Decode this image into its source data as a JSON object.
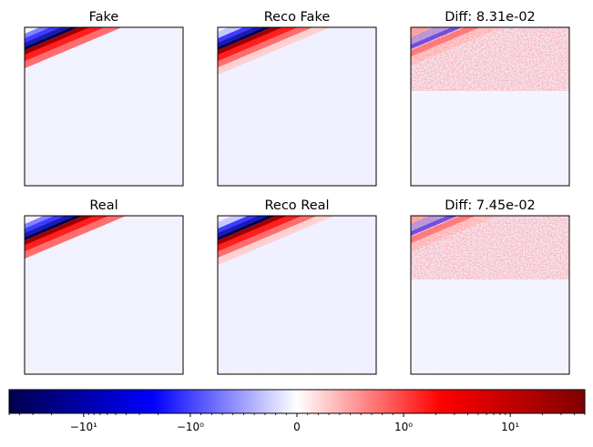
{
  "chart_data": [
    {
      "type": "heatmap",
      "title": "Fake",
      "grid": false,
      "xticks": [],
      "yticks": [],
      "colormap": "seismic",
      "content": "diagonal band: blue above, red below, on near-white background"
    },
    {
      "type": "heatmap",
      "title": "Reco Fake",
      "grid": false,
      "xticks": [],
      "yticks": [],
      "colormap": "seismic",
      "content": "reconstructed diagonal band with faint noisy background"
    },
    {
      "type": "heatmap",
      "title": "Diff: 8.31e-02",
      "grid": false,
      "xticks": [],
      "yticks": [],
      "colormap": "seismic",
      "content": "noisy red/blue residuals along the band"
    },
    {
      "type": "heatmap",
      "title": "Real",
      "grid": false,
      "xticks": [],
      "yticks": [],
      "colormap": "seismic",
      "content": "diagonal band: blue above, red below, on near-white background"
    },
    {
      "type": "heatmap",
      "title": "Reco Real",
      "grid": false,
      "xticks": [],
      "yticks": [],
      "colormap": "seismic",
      "content": "reconstructed diagonal band with faint noisy background"
    },
    {
      "type": "heatmap",
      "title": "Diff: 7.45e-02",
      "grid": false,
      "xticks": [],
      "yticks": [],
      "colormap": "seismic",
      "content": "noisy red/blue residuals along the band"
    }
  ],
  "colorbar": {
    "scale": "symlog",
    "range": [
      -50,
      50
    ],
    "colors": [
      "#00004d",
      "#0000ff",
      "#ffffff",
      "#ff0000",
      "#800000"
    ],
    "tick_labels": [
      "−10¹",
      "−10⁰",
      "0",
      "10⁰",
      "10¹"
    ]
  },
  "colors": {
    "background_tint": "#f2f2ff",
    "blue_dark": "#1a1ab4",
    "blue": "#3c3cff",
    "blue_light": "#8282ff",
    "red_light": "#ff6e6e",
    "red": "#ff1e1e",
    "red_dark": "#a00000",
    "navy": "#000044"
  }
}
